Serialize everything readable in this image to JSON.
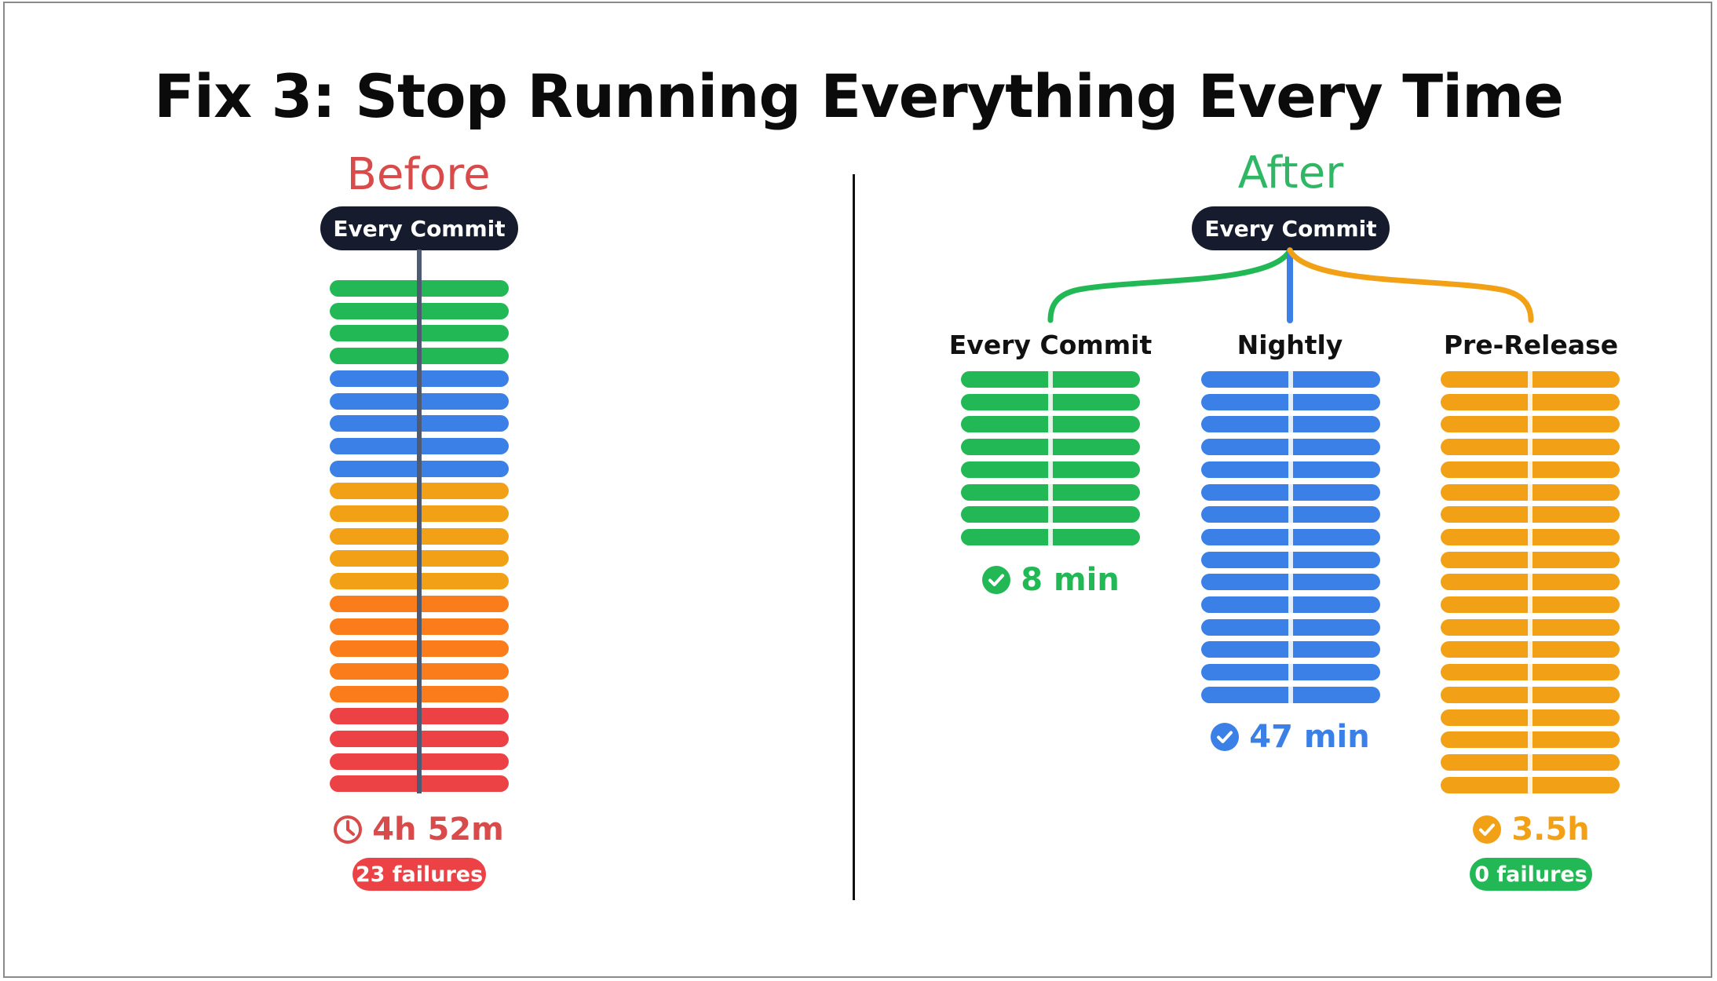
{
  "title": "Fix 3: Stop Running Everything Every Time",
  "before": {
    "label": "Before",
    "trigger": "Every Commit",
    "bar_colors": [
      "#22b855",
      "#22b855",
      "#22b855",
      "#22b855",
      "#3b80e6",
      "#3b80e6",
      "#3b80e6",
      "#3b80e6",
      "#3b80e6",
      "#f2a116",
      "#f2a116",
      "#f2a116",
      "#f2a116",
      "#f2a116",
      "#fb7c1a",
      "#fb7c1a",
      "#fb7c1a",
      "#fb7c1a",
      "#fb7c1a",
      "#ec4246",
      "#ec4246",
      "#ec4246",
      "#ec4246"
    ],
    "duration": "4h 52m",
    "failures": "23 failures",
    "icon": "clock-icon"
  },
  "after": {
    "label": "After",
    "trigger": "Every Commit",
    "columns": [
      {
        "name": "Every Commit",
        "color": "#22b855",
        "bar_count": 8,
        "duration": "8 min",
        "icon": "check-circle-icon"
      },
      {
        "name": "Nightly",
        "color": "#3b80e6",
        "bar_count": 15,
        "duration": "47 min",
        "icon": "check-circle-icon"
      },
      {
        "name": "Pre-Release",
        "color": "#f2a116",
        "bar_count": 19,
        "duration": "3.5h",
        "icon": "check-circle-icon",
        "failures": "0 failures"
      }
    ]
  },
  "colors": {
    "before_label": "#d94a4a",
    "after_label": "#2fb766",
    "before_time": "#d94a4a",
    "badge_red": "#ec4246",
    "badge_green": "#22b855",
    "pill": "#161c2d",
    "spine": "#4d5a72"
  }
}
